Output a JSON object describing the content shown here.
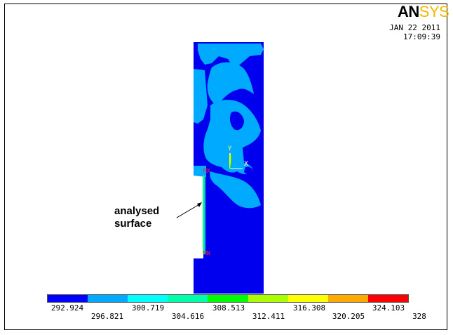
{
  "header": {
    "logo_an": "AN",
    "logo_sys": "SYS",
    "date": "JAN 22 2011",
    "time": "17:09:39"
  },
  "plot": {
    "axis_y": "Y",
    "axis_x": "X",
    "node_top": "MX",
    "node_bottom": "MN",
    "annotation_line1": "analysed",
    "annotation_line2": "surface"
  },
  "legend": {
    "colors": [
      "#0000ff",
      "#00aaff",
      "#00ffff",
      "#00ffaa",
      "#00ff00",
      "#aaff00",
      "#ffff00",
      "#ffaa00",
      "#ff0000"
    ],
    "ticks_top": [
      "292.924",
      "300.719",
      "308.513",
      "316.308",
      "324.103"
    ],
    "ticks_bottom": [
      "296.821",
      "304.616",
      "312.411",
      "320.205",
      "328"
    ]
  }
}
